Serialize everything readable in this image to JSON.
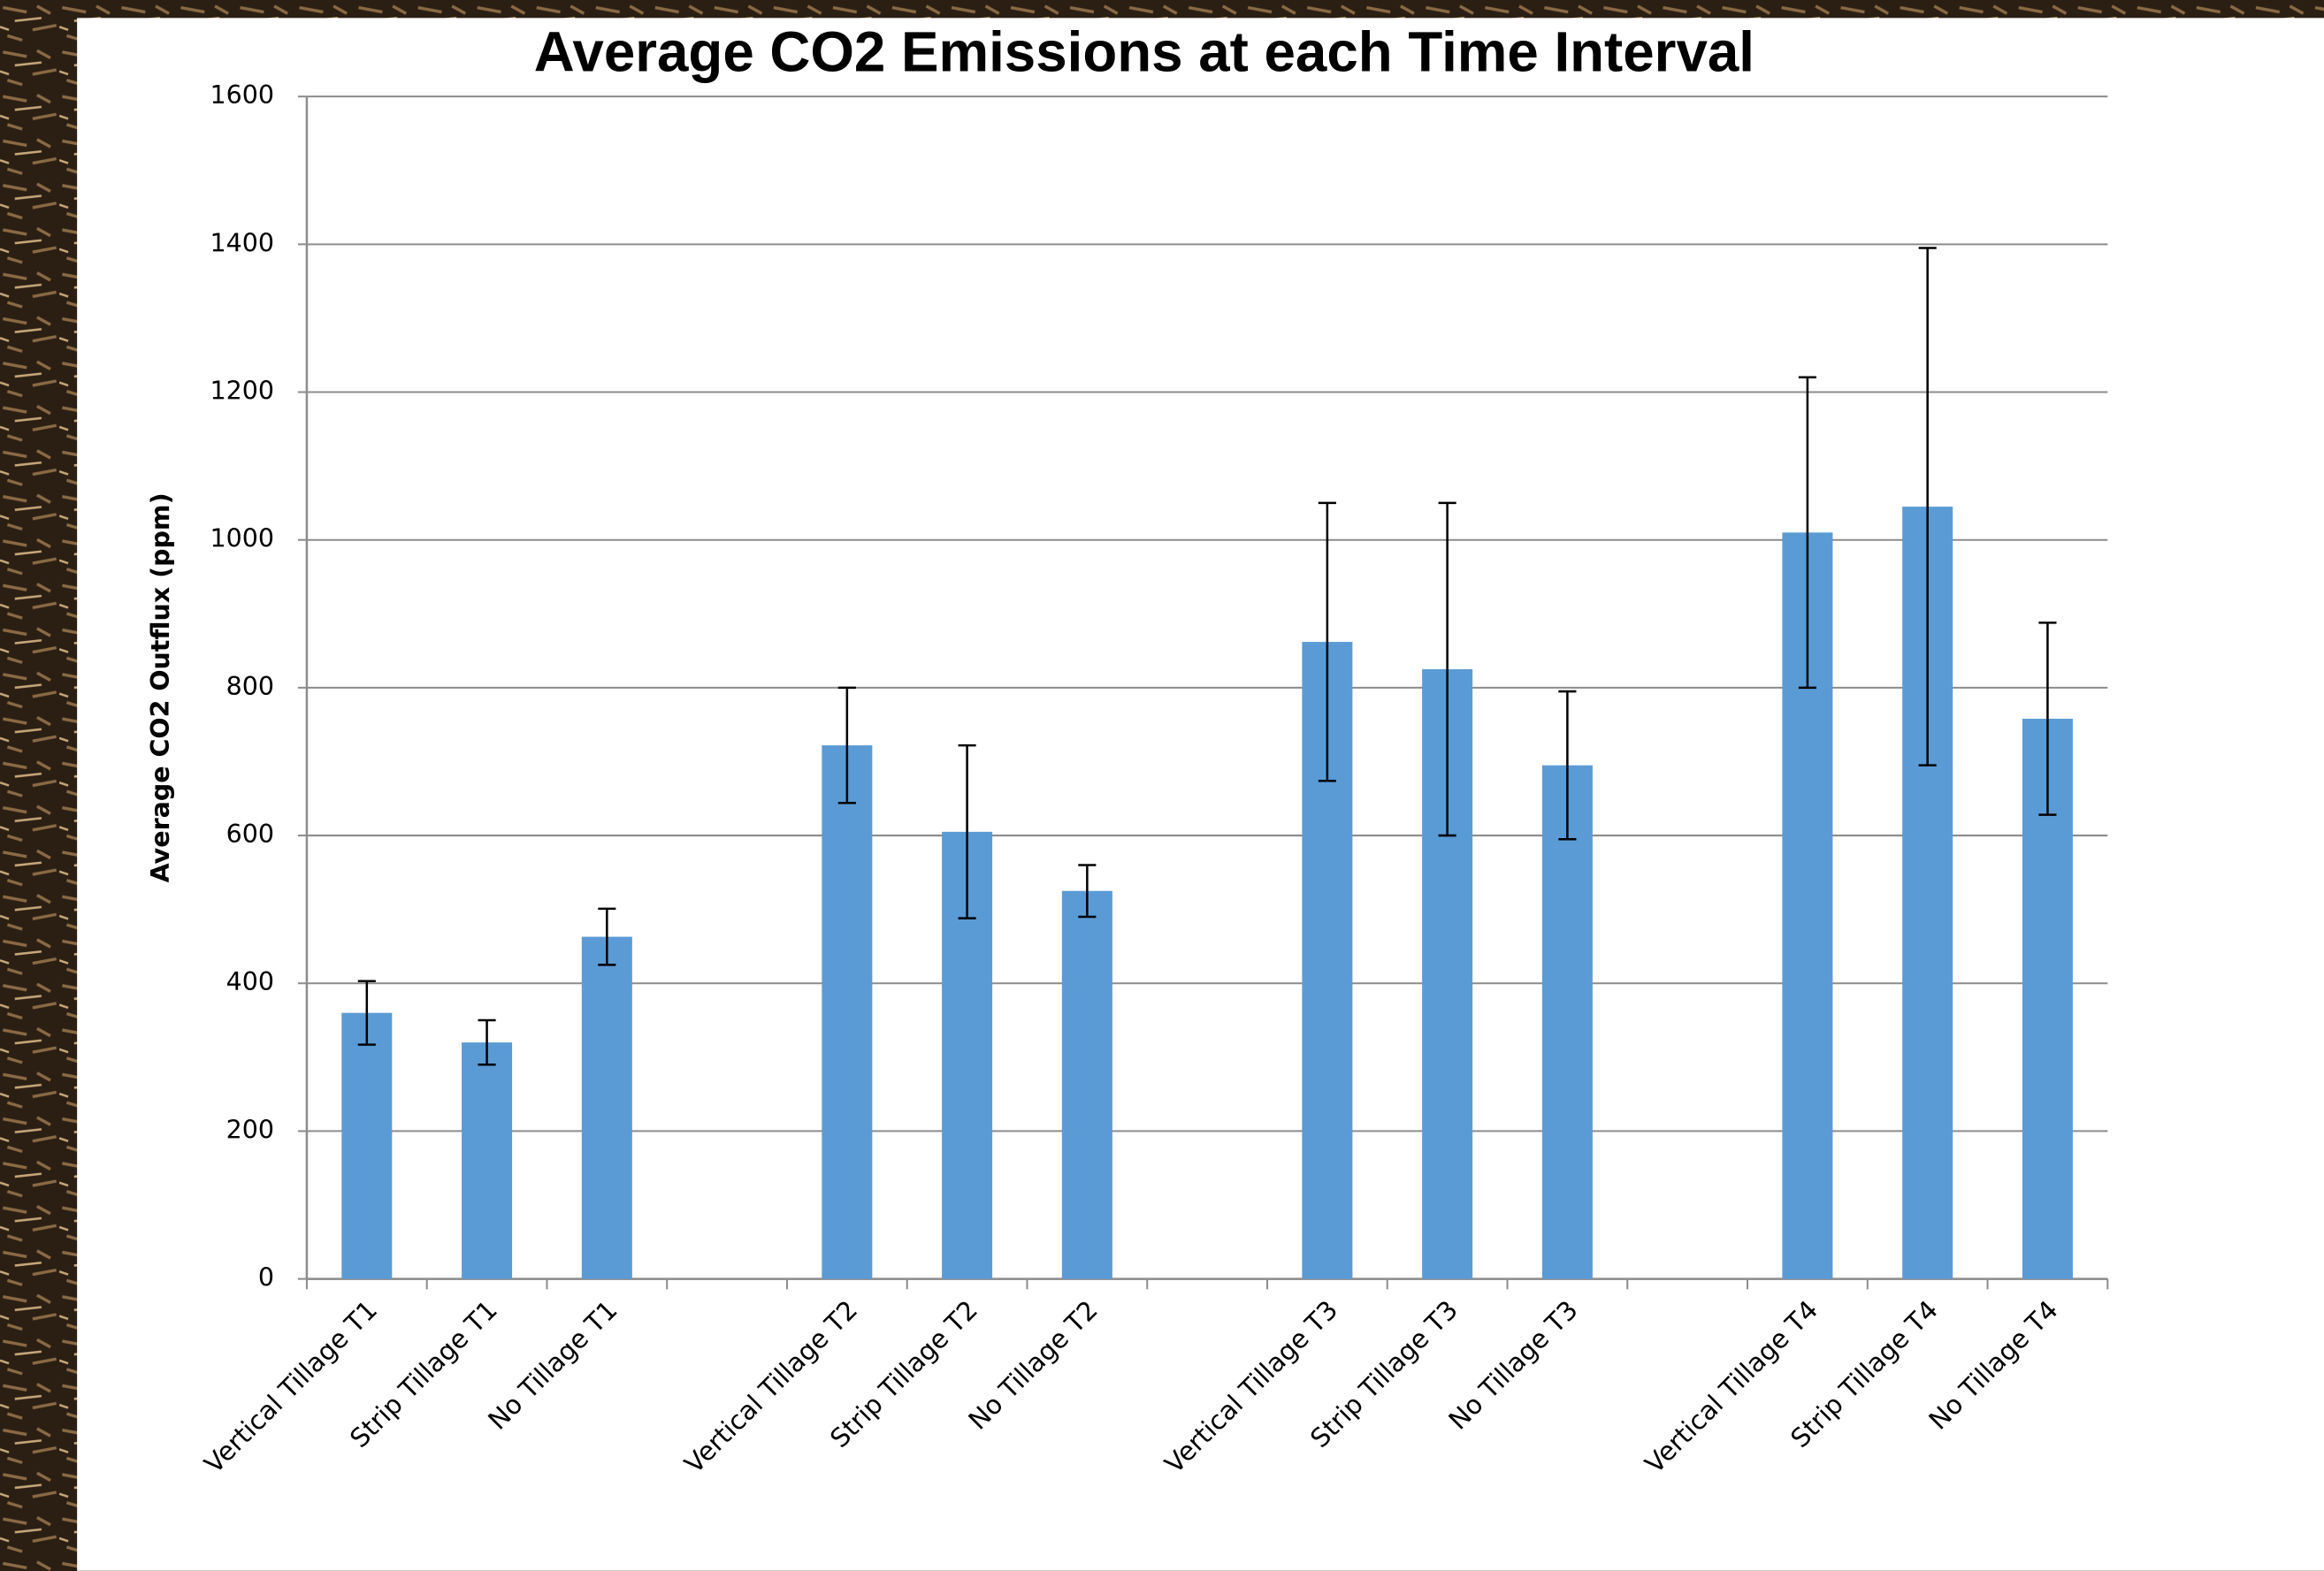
{
  "chart_data": {
    "type": "bar",
    "title": "Average CO2 Emissions at each Time Interval",
    "y_label": "Average CO2 Outflux (ppm)",
    "categories": [
      "Vertical Tillage T1",
      "Strip Tillage T1",
      "No Tillage T1",
      null,
      "Vertical Tillage T2",
      "Strip Tillage T2",
      "No Tillage T2",
      null,
      "Vertical Tillage T3",
      "Strip Tillage T3",
      "No Tillage T3",
      null,
      "Vertical Tillage T4",
      "Strip Tillage T4",
      "No Tillage T4"
    ],
    "values": [
      360,
      320,
      463,
      null,
      722,
      605,
      525,
      null,
      862,
      825,
      695,
      null,
      1010,
      1045,
      758
    ],
    "errors": [
      43,
      30,
      38,
      null,
      78,
      117,
      35,
      null,
      188,
      225,
      100,
      null,
      210,
      350,
      130
    ],
    "color": "#5b9bd5",
    "ylim": [
      0,
      1600
    ],
    "yticks": [
      0,
      200,
      400,
      600,
      800,
      1000,
      1200,
      1400,
      1600
    ],
    "grid": true
  }
}
